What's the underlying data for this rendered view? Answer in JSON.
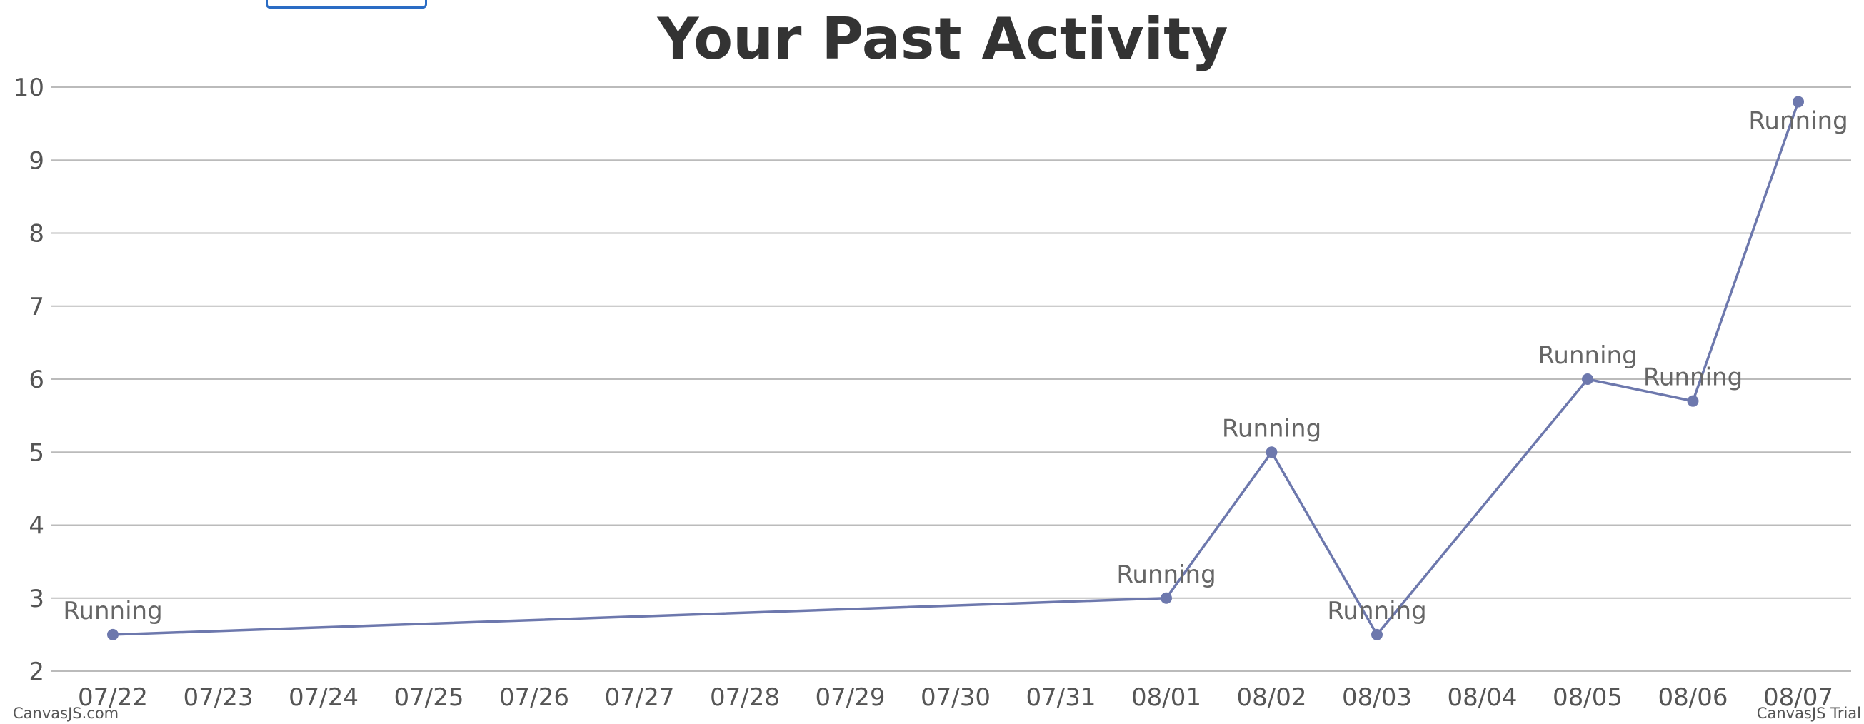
{
  "chart_data": {
    "type": "line",
    "title": "Your Past Activity",
    "x": [
      "07/22",
      "08/01",
      "08/02",
      "08/03",
      "08/05",
      "08/06",
      "08/07"
    ],
    "series": [
      {
        "values": [
          2.5,
          3,
          5,
          2.5,
          6,
          5.7,
          9.8
        ],
        "labels": [
          "Running",
          "Running",
          "Running",
          "Running",
          "Running",
          "Running",
          "Running"
        ]
      }
    ],
    "x_ticks": [
      "07/22",
      "07/23",
      "07/24",
      "07/25",
      "07/26",
      "07/27",
      "07/28",
      "07/29",
      "07/30",
      "07/31",
      "08/01",
      "08/02",
      "08/03",
      "08/04",
      "08/05",
      "08/06",
      "08/07"
    ],
    "y_ticks": [
      2,
      3,
      4,
      5,
      6,
      7,
      8,
      9,
      10
    ],
    "ylim": [
      2,
      10
    ],
    "grid": true,
    "legend": "none",
    "color": "#6d78ad"
  },
  "credits": {
    "left": "CanvasJS.com",
    "right": "CanvasJS Trial"
  }
}
